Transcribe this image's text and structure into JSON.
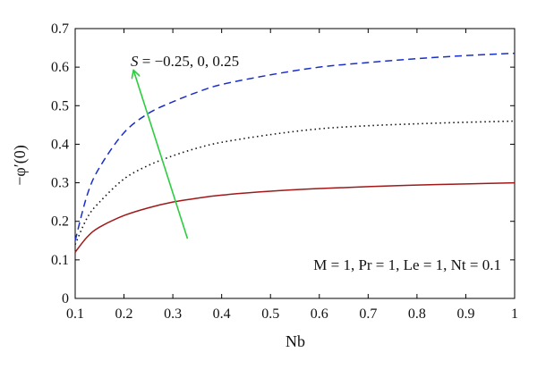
{
  "chart_data": {
    "type": "line",
    "title": "",
    "xlabel": "Nb",
    "ylabel": "−φ′(0)",
    "xlim": [
      0.1,
      1.0
    ],
    "ylim": [
      0,
      0.7
    ],
    "xticks": [
      0.1,
      0.2,
      0.3,
      0.4,
      0.5,
      0.6,
      0.7,
      0.8,
      0.9,
      1.0
    ],
    "xtick_labels": [
      "0.1",
      "0.2",
      "0.3",
      "0.4",
      "0.5",
      "0.6",
      "0.7",
      "0.8",
      "0.9",
      "1"
    ],
    "yticks": [
      0,
      0.1,
      0.2,
      0.3,
      0.4,
      0.5,
      0.6,
      0.7
    ],
    "ytick_labels": [
      "0",
      "0.1",
      "0.2",
      "0.3",
      "0.4",
      "0.5",
      "0.6",
      "0.7"
    ],
    "grid": false,
    "series": [
      {
        "style": "solid",
        "color": "#a01818",
        "x": [
          0.1,
          0.125,
          0.15,
          0.2,
          0.25,
          0.3,
          0.35,
          0.4,
          0.5,
          0.6,
          0.7,
          0.8,
          0.9,
          1.0
        ],
        "y": [
          0.12,
          0.16,
          0.185,
          0.215,
          0.235,
          0.25,
          0.26,
          0.268,
          0.278,
          0.285,
          0.29,
          0.294,
          0.297,
          0.3
        ]
      },
      {
        "style": "dotted",
        "color": "#111111",
        "x": [
          0.1,
          0.125,
          0.15,
          0.2,
          0.25,
          0.3,
          0.35,
          0.4,
          0.5,
          0.6,
          0.7,
          0.8,
          0.9,
          1.0
        ],
        "y": [
          0.14,
          0.21,
          0.25,
          0.31,
          0.345,
          0.37,
          0.39,
          0.405,
          0.425,
          0.44,
          0.448,
          0.453,
          0.457,
          0.46
        ]
      },
      {
        "style": "dashed",
        "color": "#1a2fc8",
        "x": [
          0.1,
          0.125,
          0.15,
          0.2,
          0.25,
          0.3,
          0.35,
          0.4,
          0.5,
          0.6,
          0.7,
          0.8,
          0.9,
          1.0
        ],
        "y": [
          0.15,
          0.27,
          0.34,
          0.43,
          0.48,
          0.51,
          0.535,
          0.555,
          0.58,
          0.6,
          0.612,
          0.622,
          0.63,
          0.636
        ]
      }
    ],
    "arrow": {
      "from": [
        0.33,
        0.155
      ],
      "to": [
        0.22,
        0.59
      ],
      "color": "#2ecc40"
    },
    "annotations": {
      "s_label": {
        "var": "S",
        "rest": " = −0.25, 0, 0.25"
      },
      "params": "M = 1, Pr = 1, Le = 1, Nt = 0.1"
    }
  }
}
